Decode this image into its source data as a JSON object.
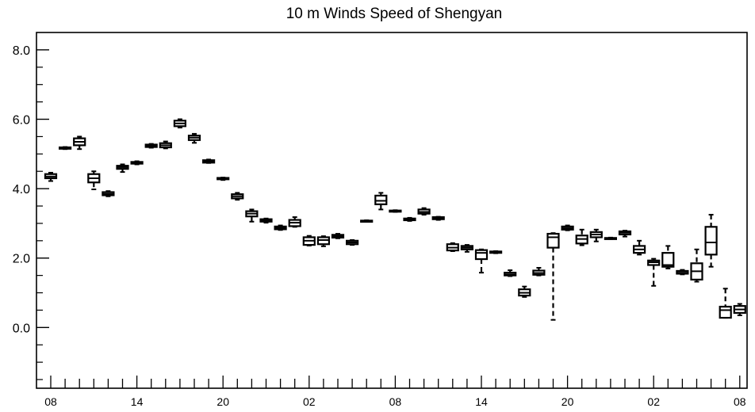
{
  "chart_data": {
    "type": "box",
    "title": "10 m Winds Speed of Shengyan",
    "xlabel": "",
    "ylabel": "",
    "ylim": [
      -1.75,
      8.5
    ],
    "y_ticks": [
      "8.0",
      "6.0",
      "4.0",
      "2.0",
      "0.0"
    ],
    "y_tick_values": [
      8,
      6,
      4,
      2,
      0
    ],
    "x_tick_labels": [
      "08",
      "14",
      "20",
      "02",
      "08",
      "14",
      "20",
      "02",
      "08"
    ],
    "x_tick_hours": [
      0,
      6,
      12,
      18,
      24,
      30,
      36,
      42,
      48
    ],
    "grid": false,
    "boxes": [
      {
        "hour": 0,
        "min": 4.22,
        "q1": 4.3,
        "median": 4.35,
        "q3": 4.42,
        "max": 4.46
      },
      {
        "hour": 1,
        "min": 5.14,
        "q1": 5.15,
        "median": 5.17,
        "q3": 5.19,
        "max": 5.2
      },
      {
        "hour": 2,
        "min": 5.14,
        "q1": 5.25,
        "median": 5.35,
        "q3": 5.45,
        "max": 5.5
      },
      {
        "hour": 3,
        "min": 3.98,
        "q1": 4.18,
        "median": 4.3,
        "q3": 4.42,
        "max": 4.5
      },
      {
        "hour": 4,
        "min": 3.78,
        "q1": 3.81,
        "median": 3.85,
        "q3": 3.9,
        "max": 3.93
      },
      {
        "hour": 5,
        "min": 4.48,
        "q1": 4.57,
        "median": 4.62,
        "q3": 4.66,
        "max": 4.7
      },
      {
        "hour": 6,
        "min": 4.7,
        "q1": 4.72,
        "median": 4.74,
        "q3": 4.77,
        "max": 4.79
      },
      {
        "hour": 7,
        "min": 5.18,
        "q1": 5.2,
        "median": 5.24,
        "q3": 5.27,
        "max": 5.29
      },
      {
        "hour": 8,
        "min": 5.16,
        "q1": 5.19,
        "median": 5.25,
        "q3": 5.31,
        "max": 5.36
      },
      {
        "hour": 9,
        "min": 5.76,
        "q1": 5.8,
        "median": 5.88,
        "q3": 5.96,
        "max": 6.0
      },
      {
        "hour": 10,
        "min": 5.32,
        "q1": 5.4,
        "median": 5.47,
        "q3": 5.53,
        "max": 5.58
      },
      {
        "hour": 11,
        "min": 4.74,
        "q1": 4.75,
        "median": 4.78,
        "q3": 4.82,
        "max": 4.84
      },
      {
        "hour": 12,
        "min": 4.25,
        "q1": 4.27,
        "median": 4.29,
        "q3": 4.31,
        "max": 4.32
      },
      {
        "hour": 13,
        "min": 3.68,
        "q1": 3.72,
        "median": 3.78,
        "q3": 3.84,
        "max": 3.88
      },
      {
        "hour": 14,
        "min": 3.05,
        "q1": 3.2,
        "median": 3.28,
        "q3": 3.35,
        "max": 3.4
      },
      {
        "hour": 15,
        "min": 3.02,
        "q1": 3.05,
        "median": 3.09,
        "q3": 3.12,
        "max": 3.14
      },
      {
        "hour": 16,
        "min": 2.81,
        "q1": 2.83,
        "median": 2.87,
        "q3": 2.91,
        "max": 2.94
      },
      {
        "hour": 17,
        "min": 2.9,
        "q1": 2.92,
        "median": 3.02,
        "q3": 3.1,
        "max": 3.18
      },
      {
        "hour": 18,
        "min": 2.36,
        "q1": 2.38,
        "median": 2.5,
        "q3": 2.6,
        "max": 2.64
      },
      {
        "hour": 19,
        "min": 2.34,
        "q1": 2.4,
        "median": 2.52,
        "q3": 2.6,
        "max": 2.63
      },
      {
        "hour": 20,
        "min": 2.57,
        "q1": 2.59,
        "median": 2.63,
        "q3": 2.67,
        "max": 2.7
      },
      {
        "hour": 21,
        "min": 2.38,
        "q1": 2.4,
        "median": 2.45,
        "q3": 2.5,
        "max": 2.52
      },
      {
        "hour": 22,
        "min": 3.05,
        "q1": 3.06,
        "median": 3.07,
        "q3": 3.08,
        "max": 3.09
      },
      {
        "hour": 23,
        "min": 3.4,
        "q1": 3.55,
        "median": 3.65,
        "q3": 3.8,
        "max": 3.88
      },
      {
        "hour": 24,
        "min": 3.33,
        "q1": 3.34,
        "median": 3.35,
        "q3": 3.37,
        "max": 3.38
      },
      {
        "hour": 25,
        "min": 3.07,
        "q1": 3.09,
        "median": 3.11,
        "q3": 3.14,
        "max": 3.16
      },
      {
        "hour": 26,
        "min": 3.25,
        "q1": 3.28,
        "median": 3.33,
        "q3": 3.4,
        "max": 3.44
      },
      {
        "hour": 27,
        "min": 3.1,
        "q1": 3.12,
        "median": 3.15,
        "q3": 3.18,
        "max": 3.19
      },
      {
        "hour": 28,
        "min": 2.2,
        "q1": 2.22,
        "median": 2.3,
        "q3": 2.4,
        "max": 2.43
      },
      {
        "hour": 29,
        "min": 2.18,
        "q1": 2.25,
        "median": 2.3,
        "q3": 2.35,
        "max": 2.38
      },
      {
        "hour": 30,
        "min": 1.58,
        "q1": 1.97,
        "median": 2.15,
        "q3": 2.23,
        "max": 2.25
      },
      {
        "hour": 31,
        "min": 2.14,
        "q1": 2.15,
        "median": 2.17,
        "q3": 2.19,
        "max": 2.2
      },
      {
        "hour": 32,
        "min": 1.48,
        "q1": 1.5,
        "median": 1.53,
        "q3": 1.58,
        "max": 1.65
      },
      {
        "hour": 33,
        "min": 0.88,
        "q1": 0.92,
        "median": 1.0,
        "q3": 1.1,
        "max": 1.18
      },
      {
        "hour": 34,
        "min": 1.5,
        "q1": 1.52,
        "median": 1.57,
        "q3": 1.64,
        "max": 1.72
      },
      {
        "hour": 35,
        "min": 0.22,
        "q1": 2.3,
        "median": 2.6,
        "q3": 2.7,
        "max": 2.72
      },
      {
        "hour": 36,
        "min": 2.8,
        "q1": 2.82,
        "median": 2.86,
        "q3": 2.91,
        "max": 2.94
      },
      {
        "hour": 37,
        "min": 2.37,
        "q1": 2.42,
        "median": 2.55,
        "q3": 2.65,
        "max": 2.82
      },
      {
        "hour": 38,
        "min": 2.48,
        "q1": 2.6,
        "median": 2.68,
        "q3": 2.75,
        "max": 2.82
      },
      {
        "hour": 39,
        "min": 2.55,
        "q1": 2.56,
        "median": 2.57,
        "q3": 2.58,
        "max": 2.59
      },
      {
        "hour": 40,
        "min": 2.62,
        "q1": 2.68,
        "median": 2.73,
        "q3": 2.77,
        "max": 2.79
      },
      {
        "hour": 41,
        "min": 2.1,
        "q1": 2.15,
        "median": 2.25,
        "q3": 2.35,
        "max": 2.5
      },
      {
        "hour": 42,
        "min": 1.2,
        "q1": 1.8,
        "median": 1.88,
        "q3": 1.93,
        "max": 1.98
      },
      {
        "hour": 43,
        "min": 1.7,
        "q1": 1.75,
        "median": 1.8,
        "q3": 2.15,
        "max": 2.35
      },
      {
        "hour": 44,
        "min": 1.53,
        "q1": 1.55,
        "median": 1.58,
        "q3": 1.63,
        "max": 1.66
      },
      {
        "hour": 45,
        "min": 1.32,
        "q1": 1.38,
        "median": 1.62,
        "q3": 1.85,
        "max": 2.25
      },
      {
        "hour": 46,
        "min": 1.75,
        "q1": 2.1,
        "median": 2.45,
        "q3": 2.9,
        "max": 3.25
      },
      {
        "hour": 47,
        "min": 0.28,
        "q1": 0.28,
        "median": 0.5,
        "q3": 0.6,
        "max": 1.12
      },
      {
        "hour": 48,
        "min": 0.35,
        "q1": 0.42,
        "median": 0.52,
        "q3": 0.62,
        "max": 0.68
      }
    ]
  }
}
